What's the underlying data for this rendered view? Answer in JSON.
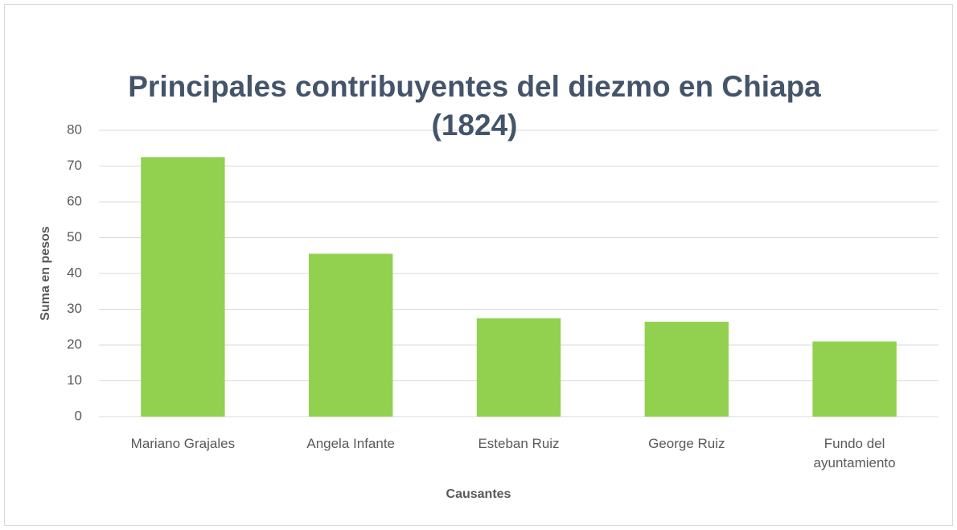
{
  "chart_data": {
    "type": "bar",
    "title": "Principales contribuyentes del diezmo en Chiapa (1824)",
    "x_label": "Causantes",
    "y_label": "Suma en pesos",
    "categories": [
      "Mariano Grajales",
      "Angela Infante",
      "Esteban Ruiz",
      "George Ruiz",
      "Fundo del ayuntamiento"
    ],
    "values": [
      72.5,
      45.5,
      27.5,
      26.5,
      21
    ],
    "color": "#92d050",
    "ylim": [
      0,
      80
    ],
    "yticks": [
      0,
      10,
      20,
      30,
      40,
      50,
      60,
      70,
      80
    ],
    "grid": true
  }
}
